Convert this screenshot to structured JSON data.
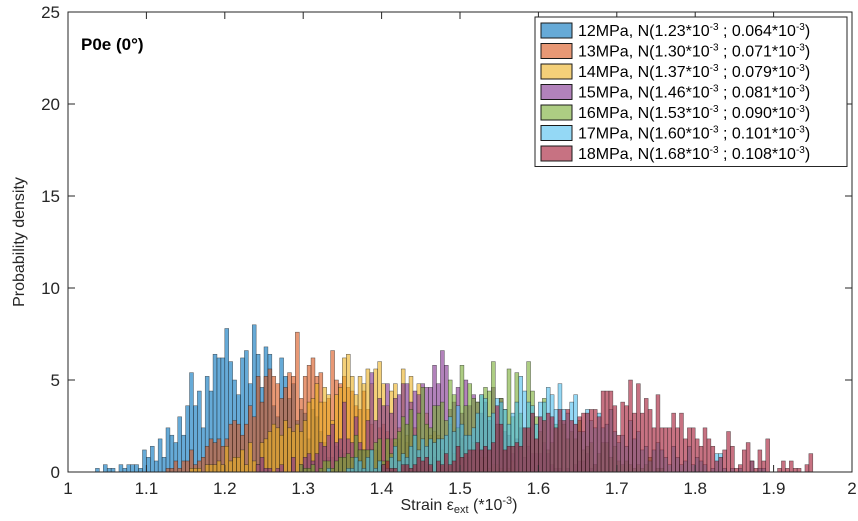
{
  "chart_data": {
    "type": "histogram",
    "annotation": "P0e (0°)",
    "xlabel": {
      "main": "Strain ",
      "symbol": "ε",
      "sub": "ext",
      "unit_pre": " (*10",
      "unit_sup": "-3",
      "unit_post": ")"
    },
    "ylabel": "Probability density",
    "xlim": [
      1,
      2
    ],
    "ylim": [
      0,
      25
    ],
    "xticks": [
      1,
      1.1,
      1.2,
      1.3,
      1.4,
      1.5,
      1.6,
      1.7,
      1.8,
      1.9,
      2
    ],
    "yticks": [
      0,
      5,
      10,
      15,
      20,
      25
    ],
    "grid": false,
    "legend_position": "top-right",
    "bin_width": 0.005,
    "series": [
      {
        "legend": {
          "prefix": "12MPa, N(1.23*10",
          "mid": " ; 0.064*10",
          "end": ")",
          "sup": "-3"
        },
        "mean": 1.23,
        "std": 0.064,
        "color": "#0072BD",
        "n_samples": 1000,
        "range": [
          1.025,
          1.435
        ]
      },
      {
        "legend": {
          "prefix": "13MPa, N(1.30*10",
          "mid": " ; 0.071*10",
          "end": ")",
          "sup": "-3"
        },
        "mean": 1.3,
        "std": 0.071,
        "color": "#D95319",
        "n_samples": 1000,
        "range": [
          1.125,
          1.5
        ]
      },
      {
        "legend": {
          "prefix": "14MPa, N(1.37*10",
          "mid": " ; 0.079*10",
          "end": ")",
          "sup": "-3"
        },
        "mean": 1.37,
        "std": 0.079,
        "color": "#EDB120",
        "n_samples": 1000,
        "range": [
          1.15,
          1.58
        ]
      },
      {
        "legend": {
          "prefix": "15MPa, N(1.46*10",
          "mid": " ; 0.081*10",
          "end": ")",
          "sup": "-3"
        },
        "mean": 1.46,
        "std": 0.081,
        "color": "#7E2F8E",
        "n_samples": 1000,
        "range": [
          1.24,
          1.68
        ]
      },
      {
        "legend": {
          "prefix": "16MPa, N(1.53*10",
          "mid": " ; 0.090*10",
          "end": ")",
          "sup": "-3"
        },
        "mean": 1.53,
        "std": 0.09,
        "color": "#77AC30",
        "n_samples": 1000,
        "range": [
          1.29,
          1.76
        ]
      },
      {
        "legend": {
          "prefix": "17MPa, N(1.60*10",
          "mid": " ; 0.101*10",
          "end": ")",
          "sup": "-3"
        },
        "mean": 1.6,
        "std": 0.101,
        "color": "#4DBEEE",
        "n_samples": 1000,
        "range": [
          1.33,
          1.9
        ]
      },
      {
        "legend": {
          "prefix": "18MPa, N(1.68*10",
          "mid": " ; 0.108*10",
          "end": ")",
          "sup": "-3"
        },
        "mean": 1.68,
        "std": 0.108,
        "color": "#A2142F",
        "n_samples": 1000,
        "range": [
          1.4,
          1.95
        ]
      }
    ]
  }
}
